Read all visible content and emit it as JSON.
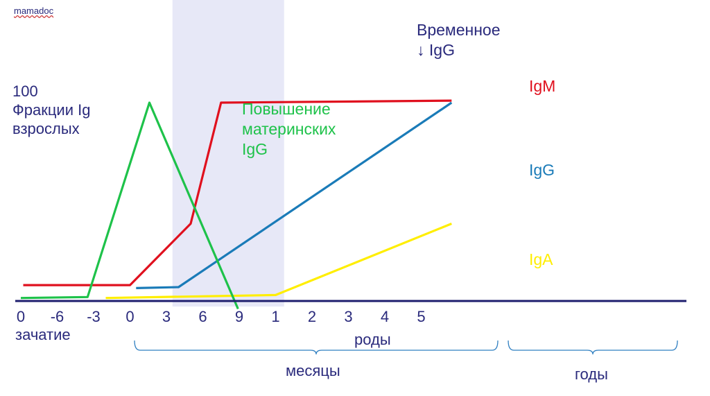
{
  "watermark": "mamadoc",
  "chart_data": {
    "type": "line",
    "ylabel_lines": [
      "100",
      "Фракции Ig",
      "взрослых"
    ],
    "x_ticks": [
      "0",
      "-6",
      "-3",
      "0",
      "3",
      "6",
      "9",
      "1",
      "2",
      "3",
      "4",
      "5"
    ],
    "x_tick_positions": [
      -9,
      -6,
      -3,
      0,
      3,
      6,
      9,
      12,
      15,
      18,
      21,
      24
    ],
    "x_unit_labels": {
      "conception": "зачатие",
      "birth": "роды",
      "months": "месяцы",
      "years": "годы"
    },
    "x_range": [
      -9,
      26.5
    ],
    "y_range": [
      0,
      100
    ],
    "shaded_band": {
      "x_from": 3.5,
      "x_to": 12.7,
      "label_lines": [
        "Временное",
        "↓ IgG"
      ]
    },
    "series": [
      {
        "name": "IgM",
        "color": "#e0101e",
        "x": [
          -8.8,
          0,
          5,
          7.5,
          26.5
        ],
        "y": [
          8,
          8,
          39,
          100,
          101
        ]
      },
      {
        "name": "IgG",
        "color": "#1a7bb8",
        "x": [
          0.5,
          4,
          26.5
        ],
        "y": [
          6.5,
          7,
          100
        ]
      },
      {
        "name": "IgA",
        "color": "#ffee00",
        "x": [
          -2,
          12,
          26.5
        ],
        "y": [
          1.5,
          3,
          39
        ]
      },
      {
        "name": "IgG",
        "color": "#1ec24a",
        "x": [
          -9,
          -3.5,
          1.6,
          8.9
        ],
        "y": [
          1.5,
          2,
          100,
          -4
        ]
      }
    ],
    "annotations": [
      {
        "series": "maternal",
        "lines": [
          "Повышение",
          "материнских",
          "IgG"
        ],
        "color": "#1ec24a"
      }
    ],
    "grid": false
  }
}
